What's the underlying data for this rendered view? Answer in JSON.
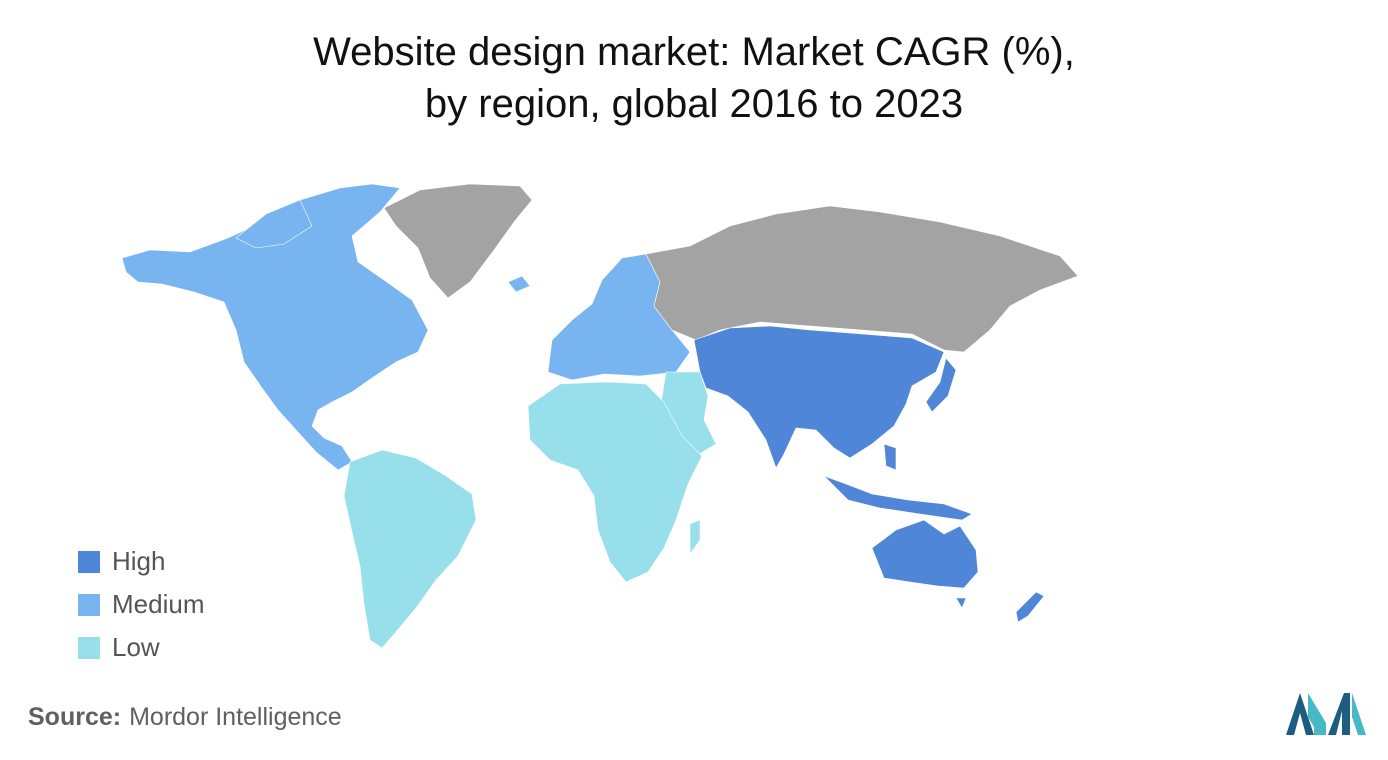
{
  "title": {
    "line1": "Website design market: Market CAGR (%),",
    "line2": "by region, global 2016 to 2023"
  },
  "colors": {
    "high": "#4f86d8",
    "medium": "#78b4f0",
    "low": "#97dfea",
    "no_data": "#a3a3a3",
    "logo_dark": "#1d5d82",
    "logo_light": "#47b8c6"
  },
  "regions": [
    {
      "key": "north-america",
      "level": "Medium"
    },
    {
      "key": "greenland",
      "level": "No data"
    },
    {
      "key": "south-america",
      "level": "Low"
    },
    {
      "key": "europe",
      "level": "Medium"
    },
    {
      "key": "russia",
      "level": "No data"
    },
    {
      "key": "africa",
      "level": "Low"
    },
    {
      "key": "middle-east",
      "level": "Low"
    },
    {
      "key": "asia-pacific",
      "level": "High"
    },
    {
      "key": "australia",
      "level": "High"
    }
  ],
  "legend": [
    {
      "label": "High",
      "color": "#4f86d8"
    },
    {
      "label": "Medium",
      "color": "#78b4f0"
    },
    {
      "label": "Low",
      "color": "#97dfea"
    }
  ],
  "source": {
    "key": "Source:",
    "value": "Mordor Intelligence"
  }
}
